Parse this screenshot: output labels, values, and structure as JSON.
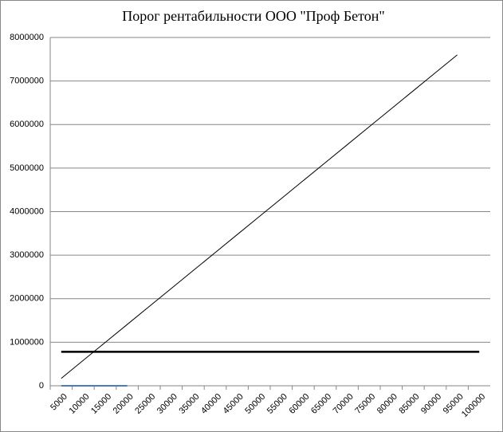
{
  "chart_data": {
    "type": "line",
    "title": "Порог рентабильности ООО \"Проф Бетон\"",
    "categories": [
      "5000",
      "10000",
      "15000",
      "20000",
      "25000",
      "30000",
      "35000",
      "40000",
      "45000",
      "50000",
      "55000",
      "60000",
      "65000",
      "70000",
      "75000",
      "80000",
      "85000",
      "90000",
      "95000",
      "100000"
    ],
    "series": [
      {
        "color": "#000000",
        "width": 1,
        "values": [
          170000,
          582800,
          995600,
          1408400,
          1821200,
          2234000,
          2646800,
          3059600,
          3472400,
          3885200,
          4298000,
          4710800,
          5123600,
          5536400,
          5949200,
          6362000,
          6774800,
          7187600,
          7600400,
          null
        ]
      },
      {
        "color": "#000000",
        "width": 2.5,
        "values": [
          780000,
          780000,
          780000,
          780000,
          780000,
          780000,
          780000,
          780000,
          780000,
          780000,
          780000,
          780000,
          780000,
          780000,
          780000,
          780000,
          780000,
          780000,
          780000,
          780000
        ]
      },
      {
        "color": "#4a7ebb",
        "width": 2,
        "values": [
          0,
          0,
          0,
          0,
          null,
          null,
          null,
          null,
          null,
          null,
          null,
          null,
          null,
          null,
          null,
          null,
          null,
          null,
          null,
          null
        ]
      }
    ],
    "ylim": [
      0,
      8000000
    ],
    "yticks": [
      0,
      1000000,
      2000000,
      3000000,
      4000000,
      5000000,
      6000000,
      7000000,
      8000000
    ],
    "grid": true
  }
}
